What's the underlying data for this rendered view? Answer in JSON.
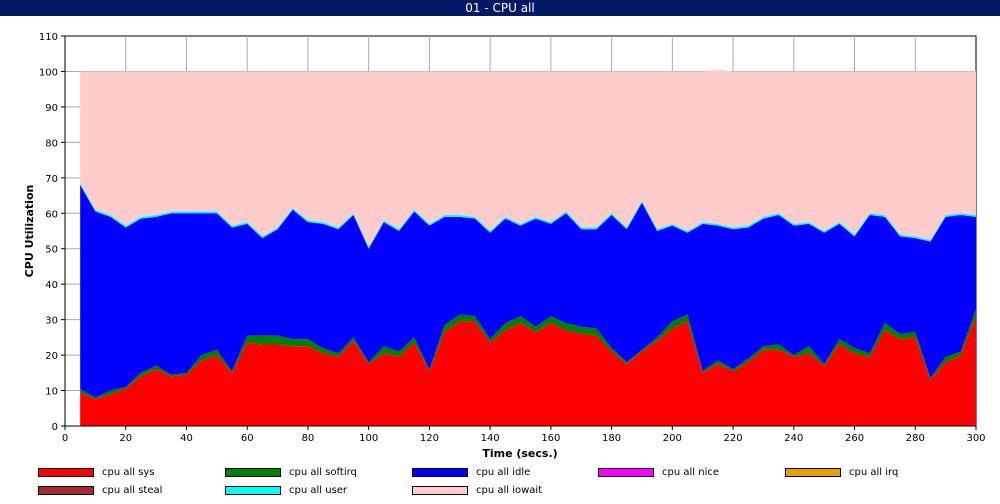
{
  "window": {
    "title": "01 - CPU all"
  },
  "chart_data": {
    "type": "area",
    "stacked": true,
    "xlabel": "Time (secs.)",
    "ylabel": "CPU Utilization",
    "xlim": [
      0,
      300
    ],
    "ylim": [
      0,
      110
    ],
    "x_ticks": [
      0,
      20,
      40,
      60,
      80,
      100,
      120,
      140,
      160,
      180,
      200,
      220,
      240,
      260,
      280,
      300
    ],
    "y_ticks": [
      0,
      10,
      20,
      30,
      40,
      50,
      60,
      70,
      80,
      90,
      100,
      110
    ],
    "grid": true,
    "legend_position": "bottom",
    "x": [
      5,
      10,
      15,
      20,
      25,
      30,
      35,
      40,
      45,
      50,
      55,
      60,
      65,
      70,
      75,
      80,
      85,
      90,
      95,
      100,
      105,
      110,
      115,
      120,
      125,
      130,
      135,
      140,
      145,
      150,
      155,
      160,
      165,
      170,
      175,
      180,
      185,
      190,
      195,
      200,
      205,
      210,
      215,
      220,
      225,
      230,
      235,
      240,
      245,
      250,
      255,
      260,
      265,
      270,
      275,
      280,
      285,
      290,
      295,
      300
    ],
    "series": [
      {
        "name": "cpu all sys",
        "color": "#ff0000",
        "values": [
          9.5,
          7.5,
          9,
          10.5,
          14,
          16,
          14,
          14.5,
          18.5,
          20,
          15,
          23.5,
          23,
          23,
          22.5,
          22.5,
          20.5,
          19.5,
          24,
          17.5,
          20.5,
          19.5,
          23.5,
          15.5,
          26.5,
          29.5,
          29.5,
          23.5,
          27,
          29,
          26.5,
          29,
          27,
          26,
          25.5,
          21,
          17.5,
          21,
          24,
          27.5,
          29.5,
          15,
          17.5,
          15.5,
          18,
          21.5,
          21.5,
          19.5,
          20.5,
          17,
          23,
          20.5,
          19.5,
          27,
          24.5,
          25,
          13,
          18,
          20,
          31
        ]
      },
      {
        "name": "cpu all softirq",
        "color": "#008000",
        "values": [
          1,
          0.5,
          1,
          0.5,
          1,
          1,
          0.5,
          0.5,
          1.5,
          1.5,
          0.5,
          2,
          2.5,
          2.5,
          2,
          2,
          1.5,
          1,
          1,
          0.5,
          2,
          1.5,
          1.5,
          0.5,
          2,
          2,
          1.5,
          1,
          2,
          2,
          1.5,
          2,
          2,
          2,
          2,
          1,
          0.5,
          0.5,
          1,
          2,
          2,
          0.5,
          1,
          0.5,
          1,
          1,
          1.5,
          0.5,
          2,
          0.5,
          1.5,
          1.5,
          1,
          2,
          1.5,
          1.5,
          0.5,
          1.5,
          1,
          2
        ]
      },
      {
        "name": "cpu all idle",
        "color": "#0000ff",
        "values": [
          57.5,
          52.5,
          49,
          45,
          43.5,
          42,
          45.5,
          45,
          40,
          38.5,
          40.5,
          31.5,
          27.5,
          30,
          36.5,
          33,
          35,
          35,
          34.5,
          32,
          35,
          34,
          35.5,
          40.5,
          30.5,
          27.5,
          27.5,
          30,
          29.5,
          25.5,
          30.5,
          26,
          31,
          27.5,
          28,
          37.5,
          37.5,
          41.5,
          30,
          27,
          23,
          41.5,
          38,
          39.5,
          37,
          36,
          36.5,
          36.5,
          34.5,
          37,
          32.5,
          31.5,
          39,
          30,
          27.5,
          26.5,
          38.5,
          39.5,
          38.5,
          26
        ]
      },
      {
        "name": "cpu all nice",
        "color": "#ff00ff",
        "values": [
          0,
          0,
          0,
          0,
          0,
          0,
          0,
          0,
          0,
          0,
          0,
          0,
          0,
          0,
          0,
          0,
          0,
          0,
          0,
          0,
          0,
          0,
          0,
          0,
          0,
          0,
          0,
          0,
          0,
          0,
          0,
          0,
          0,
          0,
          0,
          0,
          0,
          0,
          0,
          0,
          0,
          0,
          0,
          0,
          0,
          0,
          0,
          0,
          0,
          0,
          0,
          0,
          0,
          0,
          0,
          0,
          0,
          0,
          0,
          0
        ]
      },
      {
        "name": "cpu all irq",
        "color": "#e8a000",
        "values": [
          0,
          0,
          0,
          0,
          0,
          0,
          0,
          0,
          0,
          0,
          0,
          0,
          0,
          0,
          0,
          0,
          0,
          0,
          0,
          0,
          0,
          0,
          0,
          0,
          0,
          0,
          0,
          0,
          0,
          0,
          0,
          0,
          0,
          0,
          0,
          0,
          0,
          0,
          0,
          0,
          0,
          0,
          0,
          0,
          0,
          0,
          0,
          0,
          0,
          0,
          0,
          0,
          0,
          0,
          0,
          0,
          0,
          0,
          0,
          0
        ]
      },
      {
        "name": "cpu all steal",
        "color": "#a52a2a",
        "values": [
          0,
          0,
          0,
          0,
          0,
          0,
          0,
          0,
          0,
          0,
          0,
          0,
          0,
          0,
          0,
          0,
          0,
          0,
          0,
          0,
          0,
          0,
          0,
          0,
          0,
          0,
          0,
          0,
          0,
          0,
          0,
          0,
          0,
          0,
          0,
          0,
          0,
          0,
          0,
          0,
          0,
          0,
          0,
          0,
          0,
          0,
          0,
          0,
          0,
          0,
          0,
          0,
          0,
          0,
          0,
          0,
          0,
          0,
          0,
          0
        ]
      },
      {
        "name": "cpu all user",
        "color": "#00ffff",
        "values": [
          0.5,
          0.5,
          0.5,
          0.5,
          0.5,
          0.5,
          0.5,
          0.5,
          0.5,
          0.5,
          0.5,
          0.5,
          0.5,
          0.5,
          0.5,
          0.5,
          0.5,
          0.5,
          0.5,
          0.5,
          0.5,
          0.5,
          0.5,
          0.5,
          0.5,
          0.5,
          0.5,
          0.5,
          0.5,
          0.5,
          0.5,
          0.5,
          0.5,
          0.5,
          0.5,
          0.5,
          0.5,
          0.5,
          0.5,
          0.5,
          0.5,
          0.5,
          0.5,
          0.5,
          0.5,
          0.5,
          0.5,
          0.5,
          0.5,
          0.5,
          0.5,
          0.5,
          0.5,
          0.5,
          0.5,
          0.5,
          0.5,
          0.5,
          0.5,
          0.5
        ]
      },
      {
        "name": "cpu all iowait",
        "color": "#ffcccc",
        "values": [
          31.5,
          39,
          40.5,
          43.5,
          41,
          40.5,
          39.5,
          39.5,
          39.5,
          39.5,
          43.5,
          42.5,
          46.5,
          44,
          38.5,
          42,
          42.5,
          44,
          40,
          49.5,
          42,
          44.5,
          39,
          43,
          40.5,
          40.5,
          41,
          45,
          41,
          43,
          41,
          42.5,
          39.5,
          44,
          44,
          40,
          44,
          36.5,
          44.5,
          43,
          45,
          42.5,
          43.5,
          44,
          43.5,
          41,
          40,
          43,
          42.5,
          45,
          42.5,
          46,
          40,
          40.5,
          46,
          46.5,
          47.5,
          40.5,
          40,
          40.5
        ]
      }
    ]
  }
}
